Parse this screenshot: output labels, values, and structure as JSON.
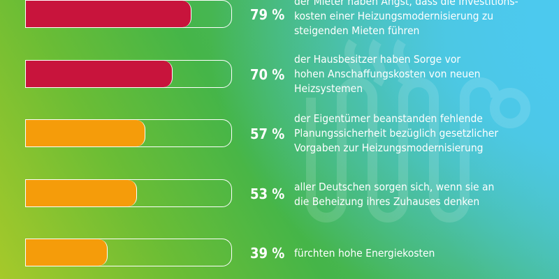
{
  "colors": {
    "high": "#c8143c",
    "medium": "#f59c0a",
    "track_border": "#ffffff",
    "text": "#ffffff"
  },
  "chart_data": {
    "type": "bar",
    "orientation": "horizontal",
    "unit": "%",
    "xlim": [
      0,
      100
    ],
    "values": [
      79,
      70,
      57,
      53,
      39
    ],
    "labels": [
      "79 %",
      "70 %",
      "57 %",
      "53 %",
      "39 %"
    ],
    "categories": [
      [
        "der Mieter haben Angst, dass die Investitions-",
        "kosten einer Heizungsmodernisierung zu",
        "steigenden Mieten führen"
      ],
      [
        "der Hausbesitzer haben Sorge vor",
        "hohen Anschaffungskosten von neuen",
        "Heizsystemen"
      ],
      [
        "der Eigentümer beanstanden fehlende",
        "Planungssicherheit bezüglich gesetzlicher",
        "Vorgaben zur Heizungsmodernisierung"
      ],
      [
        "aller Deutschen sorgen sich, wenn sie an",
        "die Beheizung ihres Zuhauses denken"
      ],
      [
        "fürchten hohe Energiekosten"
      ]
    ],
    "bar_colors": [
      "#c8143c",
      "#c8143c",
      "#f59c0a",
      "#f59c0a",
      "#f59c0a"
    ],
    "grid": false,
    "legend": "none"
  },
  "decoration": {
    "background_icon": "radiator-icon"
  }
}
